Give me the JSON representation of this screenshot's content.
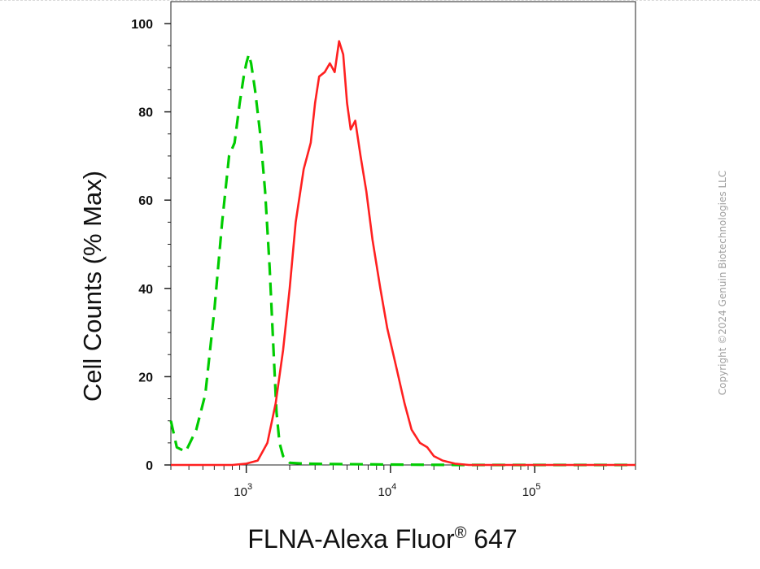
{
  "chart_data": {
    "type": "line",
    "title": "",
    "xlabel": "FLNA-Alexa Fluor",
    "xlabel_superscript": "®",
    "xlabel_suffix": " 647",
    "ylabel": "Cell Counts (% Max)",
    "x_scale": "log",
    "xlim": [
      300,
      500000
    ],
    "ylim": [
      0,
      100
    ],
    "x_tick_labels": [
      {
        "base": "10",
        "exp": "3",
        "value": 1000
      },
      {
        "base": "10",
        "exp": "4",
        "value": 10000
      },
      {
        "base": "10",
        "exp": "5",
        "value": 100000
      }
    ],
    "y_ticks": [
      0,
      20,
      40,
      60,
      80,
      100
    ],
    "grid": false,
    "series": [
      {
        "color": "#00cc00",
        "dash": "dashed",
        "points": [
          [
            300,
            10
          ],
          [
            330,
            4
          ],
          [
            380,
            3
          ],
          [
            450,
            8
          ],
          [
            520,
            16
          ],
          [
            600,
            35
          ],
          [
            680,
            55
          ],
          [
            760,
            70
          ],
          [
            830,
            73
          ],
          [
            900,
            82
          ],
          [
            960,
            88
          ],
          [
            1000,
            91
          ],
          [
            1040,
            93
          ],
          [
            1080,
            91
          ],
          [
            1150,
            85
          ],
          [
            1250,
            75
          ],
          [
            1350,
            62
          ],
          [
            1450,
            45
          ],
          [
            1550,
            25
          ],
          [
            1620,
            12
          ],
          [
            1700,
            5
          ],
          [
            1800,
            2
          ],
          [
            2000,
            0.5
          ],
          [
            2500,
            0.3
          ],
          [
            4000,
            0.2
          ],
          [
            10000,
            0.1
          ],
          [
            30000,
            0
          ],
          [
            500000,
            0
          ]
        ]
      },
      {
        "color": "#ff2020",
        "dash": "solid",
        "points": [
          [
            300,
            0
          ],
          [
            800,
            0
          ],
          [
            1000,
            0.3
          ],
          [
            1200,
            1
          ],
          [
            1400,
            5
          ],
          [
            1600,
            14
          ],
          [
            1800,
            26
          ],
          [
            2000,
            40
          ],
          [
            2200,
            55
          ],
          [
            2500,
            67
          ],
          [
            2800,
            73
          ],
          [
            3000,
            82
          ],
          [
            3200,
            88
          ],
          [
            3500,
            89
          ],
          [
            3800,
            91
          ],
          [
            4100,
            89
          ],
          [
            4400,
            96
          ],
          [
            4700,
            93
          ],
          [
            5000,
            82
          ],
          [
            5300,
            76
          ],
          [
            5700,
            78
          ],
          [
            6200,
            70
          ],
          [
            6800,
            62
          ],
          [
            7500,
            51
          ],
          [
            8500,
            40
          ],
          [
            9500,
            31
          ],
          [
            11000,
            22
          ],
          [
            12500,
            14
          ],
          [
            14000,
            8
          ],
          [
            16000,
            5
          ],
          [
            18000,
            4
          ],
          [
            20000,
            2
          ],
          [
            23000,
            1
          ],
          [
            28000,
            0.3
          ],
          [
            35000,
            0
          ],
          [
            500000,
            0
          ]
        ]
      }
    ]
  },
  "watermark": {
    "text": "Copyright ©2024 Genuin Biotechnologies LLC"
  }
}
